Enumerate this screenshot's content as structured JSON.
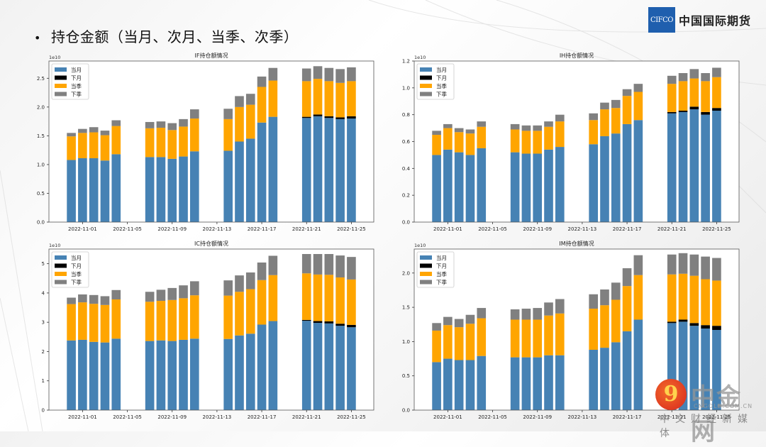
{
  "slide": {
    "bullet": "•",
    "title": "持仓金额（当月、次月、当季、次季）",
    "logo_box": "CIFCO",
    "logo_text": "中国国际期货"
  },
  "watermark": {
    "icon_glyph": "9",
    "name": "中金网",
    "url": "CNGOLD.COM.CN",
    "subtitle": "中文财经新媒体"
  },
  "colors": {
    "当月": "#4682b4",
    "下月": "#000000",
    "当季": "#ffa500",
    "下季": "#808080"
  },
  "chart_data": [
    {
      "type": "bar",
      "stacked": true,
      "title": "IF持仓额情况",
      "scale_label": "1e10",
      "xlabel": "",
      "ylabel": "",
      "ylim": [
        0,
        2.8
      ],
      "yticks": [
        0.0,
        0.5,
        1.0,
        1.5,
        2.0,
        2.5
      ],
      "ytick_labels": [
        "0.0",
        "0.5",
        "1.0",
        "1.5",
        "2.0",
        "2.5"
      ],
      "xticks": [
        "2022-11-01",
        "2022-11-05",
        "2022-11-09",
        "2022-11-13",
        "2022-11-17",
        "2022-11-21",
        "2022-11-25"
      ],
      "legend": [
        "当月",
        "下月",
        "当季",
        "下季"
      ],
      "legend_position": "upper-left",
      "x": [
        "2022-10-31",
        "2022-11-01",
        "2022-11-02",
        "2022-11-03",
        "2022-11-04",
        "2022-11-07",
        "2022-11-08",
        "2022-11-09",
        "2022-11-10",
        "2022-11-11",
        "2022-11-14",
        "2022-11-15",
        "2022-11-16",
        "2022-11-17",
        "2022-11-18",
        "2022-11-21",
        "2022-11-22",
        "2022-11-23",
        "2022-11-24",
        "2022-11-25"
      ],
      "series": [
        {
          "name": "当月",
          "values": [
            1.08,
            1.11,
            1.11,
            1.07,
            1.18,
            1.13,
            1.13,
            1.1,
            1.14,
            1.23,
            1.24,
            1.4,
            1.45,
            1.73,
            1.83,
            1.81,
            1.84,
            1.81,
            1.79,
            1.8
          ]
        },
        {
          "name": "下月",
          "values": [
            0,
            0,
            0,
            0,
            0,
            0,
            0,
            0,
            0,
            0,
            0,
            0,
            0,
            0,
            0,
            0.02,
            0.03,
            0.03,
            0.03,
            0.04
          ]
        },
        {
          "name": "当季",
          "values": [
            0.41,
            0.44,
            0.45,
            0.44,
            0.49,
            0.5,
            0.51,
            0.5,
            0.52,
            0.57,
            0.55,
            0.6,
            0.59,
            0.62,
            0.63,
            0.62,
            0.62,
            0.61,
            0.6,
            0.61
          ]
        },
        {
          "name": "下季",
          "values": [
            0.06,
            0.07,
            0.09,
            0.08,
            0.1,
            0.11,
            0.11,
            0.12,
            0.13,
            0.16,
            0.18,
            0.19,
            0.19,
            0.18,
            0.22,
            0.22,
            0.22,
            0.23,
            0.24,
            0.24
          ]
        }
      ]
    },
    {
      "type": "bar",
      "stacked": true,
      "title": "IH持仓额情况",
      "scale_label": "1e10",
      "xlabel": "",
      "ylabel": "",
      "ylim": [
        0,
        1.2
      ],
      "yticks": [
        0.0,
        0.2,
        0.4,
        0.6,
        0.8,
        1.0,
        1.2
      ],
      "ytick_labels": [
        "0.0",
        "0.2",
        "0.4",
        "0.6",
        "0.8",
        "1.0",
        "1.2"
      ],
      "xticks": [
        "2022-11-01",
        "2022-11-05",
        "2022-11-09",
        "2022-11-13",
        "2022-11-17",
        "2022-11-21",
        "2022-11-25"
      ],
      "legend": [
        "当月",
        "下月",
        "当季",
        "下季"
      ],
      "legend_position": "upper-left",
      "x": [
        "2022-10-31",
        "2022-11-01",
        "2022-11-02",
        "2022-11-03",
        "2022-11-04",
        "2022-11-07",
        "2022-11-08",
        "2022-11-09",
        "2022-11-10",
        "2022-11-11",
        "2022-11-14",
        "2022-11-15",
        "2022-11-16",
        "2022-11-17",
        "2022-11-18",
        "2022-11-21",
        "2022-11-22",
        "2022-11-23",
        "2022-11-24",
        "2022-11-25"
      ],
      "series": [
        {
          "name": "当月",
          "values": [
            0.5,
            0.54,
            0.52,
            0.5,
            0.55,
            0.52,
            0.51,
            0.51,
            0.54,
            0.56,
            0.58,
            0.64,
            0.66,
            0.73,
            0.76,
            0.81,
            0.82,
            0.84,
            0.8,
            0.83
          ]
        },
        {
          "name": "下月",
          "values": [
            0,
            0,
            0,
            0,
            0,
            0,
            0,
            0,
            0,
            0,
            0,
            0,
            0,
            0,
            0,
            0.01,
            0.01,
            0.02,
            0.02,
            0.02
          ]
        },
        {
          "name": "当季",
          "values": [
            0.15,
            0.16,
            0.15,
            0.16,
            0.16,
            0.17,
            0.17,
            0.17,
            0.17,
            0.19,
            0.18,
            0.2,
            0.19,
            0.21,
            0.21,
            0.21,
            0.22,
            0.21,
            0.23,
            0.23
          ]
        },
        {
          "name": "下季",
          "values": [
            0.03,
            0.03,
            0.03,
            0.03,
            0.04,
            0.04,
            0.04,
            0.04,
            0.04,
            0.05,
            0.05,
            0.05,
            0.06,
            0.05,
            0.06,
            0.06,
            0.06,
            0.07,
            0.06,
            0.07
          ]
        }
      ]
    },
    {
      "type": "bar",
      "stacked": true,
      "title": "IC持仓额情况",
      "scale_label": "1e10",
      "xlabel": "",
      "ylabel": "",
      "ylim": [
        0,
        5.5
      ],
      "yticks": [
        0,
        1,
        2,
        3,
        4,
        5
      ],
      "ytick_labels": [
        "0",
        "1",
        "2",
        "3",
        "4",
        "5"
      ],
      "xticks": [
        "2022-11-01",
        "2022-11-05",
        "2022-11-09",
        "2022-11-13",
        "2022-11-17",
        "2022-11-21",
        "2022-11-25"
      ],
      "legend": [
        "当月",
        "下月",
        "当季",
        "下季"
      ],
      "legend_position": "upper-left",
      "x": [
        "2022-10-31",
        "2022-11-01",
        "2022-11-02",
        "2022-11-03",
        "2022-11-04",
        "2022-11-07",
        "2022-11-08",
        "2022-11-09",
        "2022-11-10",
        "2022-11-11",
        "2022-11-14",
        "2022-11-15",
        "2022-11-16",
        "2022-11-17",
        "2022-11-18",
        "2022-11-21",
        "2022-11-22",
        "2022-11-23",
        "2022-11-24",
        "2022-11-25"
      ],
      "series": [
        {
          "name": "当月",
          "values": [
            2.38,
            2.4,
            2.33,
            2.31,
            2.44,
            2.36,
            2.38,
            2.36,
            2.4,
            2.44,
            2.43,
            2.55,
            2.61,
            2.92,
            3.04,
            3.05,
            2.98,
            2.96,
            2.88,
            2.83
          ]
        },
        {
          "name": "下月",
          "values": [
            0,
            0,
            0,
            0,
            0,
            0,
            0,
            0,
            0,
            0,
            0,
            0,
            0,
            0,
            0,
            0.03,
            0.06,
            0.07,
            0.07,
            0.08
          ]
        },
        {
          "name": "当季",
          "values": [
            1.24,
            1.28,
            1.3,
            1.28,
            1.34,
            1.34,
            1.35,
            1.4,
            1.42,
            1.48,
            1.48,
            1.49,
            1.52,
            1.52,
            1.57,
            1.59,
            1.59,
            1.59,
            1.58,
            1.55
          ]
        },
        {
          "name": "下季",
          "values": [
            0.22,
            0.27,
            0.3,
            0.3,
            0.32,
            0.34,
            0.38,
            0.41,
            0.44,
            0.48,
            0.52,
            0.56,
            0.57,
            0.6,
            0.66,
            0.66,
            0.7,
            0.71,
            0.75,
            0.77
          ]
        }
      ]
    },
    {
      "type": "bar",
      "stacked": true,
      "title": "IM持仓额情况",
      "scale_label": "1e10",
      "xlabel": "",
      "ylabel": "",
      "ylim": [
        0,
        2.35
      ],
      "yticks": [
        0.0,
        0.5,
        1.0,
        1.5,
        2.0
      ],
      "ytick_labels": [
        "0.0",
        "0.5",
        "1.0",
        "1.5",
        "2.0"
      ],
      "xticks": [
        "2022-11-01",
        "2022-11-05",
        "2022-11-09",
        "2022-11-13",
        "2022-11-17",
        "2022-11-21",
        "2022-11-25"
      ],
      "legend": [
        "当月",
        "下月",
        "当季",
        "下季"
      ],
      "legend_position": "upper-left",
      "x": [
        "2022-10-31",
        "2022-11-01",
        "2022-11-02",
        "2022-11-03",
        "2022-11-04",
        "2022-11-07",
        "2022-11-08",
        "2022-11-09",
        "2022-11-10",
        "2022-11-11",
        "2022-11-14",
        "2022-11-15",
        "2022-11-16",
        "2022-11-17",
        "2022-11-18",
        "2022-11-21",
        "2022-11-22",
        "2022-11-23",
        "2022-11-24",
        "2022-11-25"
      ],
      "series": [
        {
          "name": "当月",
          "values": [
            0.7,
            0.75,
            0.73,
            0.73,
            0.79,
            0.77,
            0.77,
            0.77,
            0.8,
            0.8,
            0.88,
            0.91,
            0.99,
            1.15,
            1.32,
            1.27,
            1.29,
            1.23,
            1.19,
            1.17
          ]
        },
        {
          "name": "下月",
          "values": [
            0,
            0,
            0,
            0,
            0,
            0,
            0,
            0,
            0,
            0,
            0,
            0,
            0,
            0,
            0,
            0.02,
            0.03,
            0.04,
            0.05,
            0.06
          ]
        },
        {
          "name": "当季",
          "values": [
            0.46,
            0.49,
            0.48,
            0.53,
            0.55,
            0.55,
            0.55,
            0.55,
            0.58,
            0.61,
            0.6,
            0.62,
            0.62,
            0.66,
            0.65,
            0.69,
            0.67,
            0.69,
            0.67,
            0.66
          ]
        },
        {
          "name": "下季",
          "values": [
            0.11,
            0.12,
            0.12,
            0.13,
            0.15,
            0.15,
            0.16,
            0.17,
            0.19,
            0.21,
            0.21,
            0.23,
            0.25,
            0.26,
            0.29,
            0.29,
            0.3,
            0.31,
            0.33,
            0.33
          ]
        }
      ]
    }
  ]
}
